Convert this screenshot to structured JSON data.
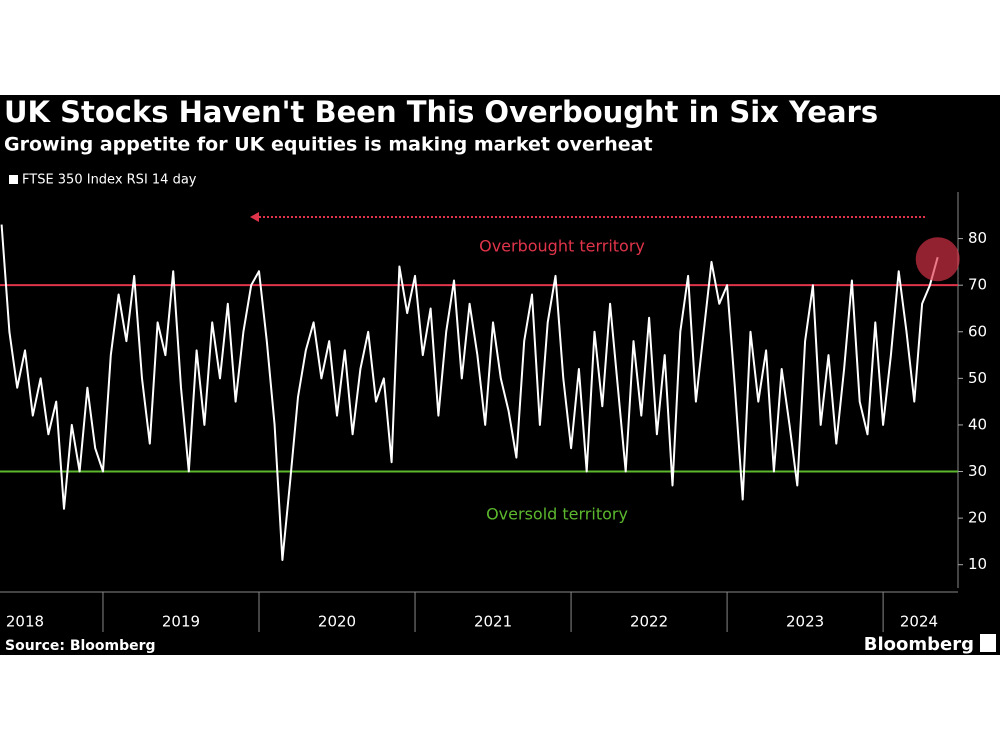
{
  "chart_data": {
    "type": "line",
    "title": "UK Stocks Haven't Been This Overbought in Six Years",
    "subtitle": "Growing appetite for UK equities is making market overheat",
    "source": "Source: Bloomberg",
    "brand": "Bloomberg",
    "x": [
      2018.35,
      2018.4,
      2018.45,
      2018.5,
      2018.55,
      2018.6,
      2018.65,
      2018.7,
      2018.75,
      2018.8,
      2018.85,
      2018.9,
      2018.95,
      2019.0,
      2019.05,
      2019.1,
      2019.15,
      2019.2,
      2019.25,
      2019.3,
      2019.35,
      2019.4,
      2019.45,
      2019.5,
      2019.55,
      2019.6,
      2019.65,
      2019.7,
      2019.75,
      2019.8,
      2019.85,
      2019.9,
      2019.95,
      2020.0,
      2020.05,
      2020.1,
      2020.15,
      2020.2,
      2020.25,
      2020.3,
      2020.35,
      2020.4,
      2020.45,
      2020.5,
      2020.55,
      2020.6,
      2020.65,
      2020.7,
      2020.75,
      2020.8,
      2020.85,
      2020.9,
      2020.95,
      2021.0,
      2021.05,
      2021.1,
      2021.15,
      2021.2,
      2021.25,
      2021.3,
      2021.35,
      2021.4,
      2021.45,
      2021.5,
      2021.55,
      2021.6,
      2021.65,
      2021.7,
      2021.75,
      2021.8,
      2021.85,
      2021.9,
      2021.95,
      2022.0,
      2022.05,
      2022.1,
      2022.15,
      2022.2,
      2022.25,
      2022.3,
      2022.35,
      2022.4,
      2022.45,
      2022.5,
      2022.55,
      2022.6,
      2022.65,
      2022.7,
      2022.75,
      2022.8,
      2022.85,
      2022.9,
      2022.95,
      2023.0,
      2023.05,
      2023.1,
      2023.15,
      2023.2,
      2023.25,
      2023.3,
      2023.35,
      2023.4,
      2023.45,
      2023.5,
      2023.55,
      2023.6,
      2023.65,
      2023.7,
      2023.75,
      2023.8,
      2023.85,
      2023.9,
      2023.95,
      2024.0,
      2024.05,
      2024.1,
      2024.15,
      2024.2,
      2024.25,
      2024.3,
      2024.35
    ],
    "series": [
      {
        "name": "FTSE 350 Index RSI 14 day",
        "color": "#ffffff",
        "values": [
          83,
          60,
          48,
          56,
          42,
          50,
          38,
          45,
          22,
          40,
          30,
          48,
          35,
          30,
          55,
          68,
          58,
          72,
          50,
          36,
          62,
          55,
          73,
          48,
          30,
          56,
          40,
          62,
          50,
          66,
          45,
          60,
          70,
          73,
          58,
          40,
          11,
          28,
          46,
          56,
          62,
          50,
          58,
          42,
          56,
          38,
          52,
          60,
          45,
          50,
          32,
          74,
          64,
          72,
          55,
          65,
          42,
          60,
          71,
          50,
          66,
          55,
          40,
          62,
          50,
          43,
          33,
          58,
          68,
          40,
          62,
          72,
          50,
          35,
          52,
          30,
          60,
          44,
          66,
          48,
          30,
          58,
          42,
          63,
          38,
          55,
          27,
          60,
          72,
          45,
          60,
          75,
          66,
          70,
          48,
          24,
          60,
          45,
          56,
          30,
          52,
          40,
          27,
          58,
          70,
          40,
          55,
          36,
          52,
          71,
          45,
          38,
          62,
          40,
          55,
          73,
          60,
          45,
          66,
          70,
          76
        ]
      }
    ],
    "xlim": [
      2018.34,
      2024.48
    ],
    "xticks": [
      {
        "value": 2018.5,
        "label": "2018"
      },
      {
        "value": 2019.5,
        "label": "2019"
      },
      {
        "value": 2020.5,
        "label": "2020"
      },
      {
        "value": 2021.5,
        "label": "2021"
      },
      {
        "value": 2022.5,
        "label": "2022"
      },
      {
        "value": 2023.5,
        "label": "2023"
      },
      {
        "value": 2024.23,
        "label": "2024"
      }
    ],
    "xminorticks": [
      2019,
      2020,
      2021,
      2022,
      2023,
      2024
    ],
    "ylim": [
      5,
      90
    ],
    "yticks": [
      10,
      20,
      30,
      40,
      50,
      60,
      70,
      80
    ],
    "reference_lines": [
      {
        "value": 70,
        "color": "#e0344a"
      },
      {
        "value": 30,
        "color": "#5cb82e"
      }
    ],
    "annotations": [
      {
        "text": "Overbought territory",
        "color": "#e0344a"
      },
      {
        "text": "Oversold territory",
        "color": "#5cb82e"
      }
    ]
  }
}
